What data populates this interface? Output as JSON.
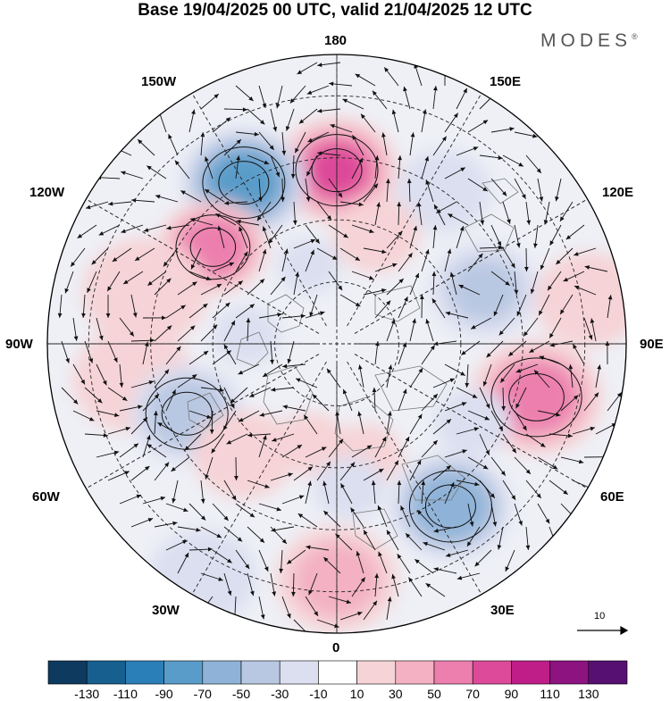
{
  "title": "Base 19/04/2025 00 UTC, valid 21/04/2025 12 UTC",
  "brand": "MODES",
  "brand_mark": "®",
  "longitude_labels": {
    "top": "180",
    "top_right": "150E",
    "top_left": "150W",
    "upper_left": "120W",
    "upper_right": "120E",
    "left": "90W",
    "right": "90E",
    "lower_left": "60W",
    "lower_right": "60E",
    "bottom_left": "30W",
    "bottom_right": "30E",
    "bottom": "0"
  },
  "reference_vector_label": "10",
  "colorbar": {
    "colors": [
      "#0d3a5e",
      "#175f8f",
      "#2b7fb8",
      "#5a9cc9",
      "#8fb3d8",
      "#b9c8e2",
      "#dcdff0",
      "#ffffff",
      "#f6d3d6",
      "#f3b1c3",
      "#ec7fae",
      "#dd4a99",
      "#bf1d87",
      "#8c1380",
      "#561071"
    ],
    "labels": [
      "-130",
      "-110",
      "-90",
      "-70",
      "-50",
      "-30",
      "-10",
      "10",
      "30",
      "50",
      "70",
      "90",
      "110",
      "130"
    ]
  },
  "anomaly_centers": [
    {
      "lon": 180,
      "lat": 48,
      "value": 80,
      "size": 1.0
    },
    {
      "lon": 150,
      "lat": 45,
      "value": -95,
      "size": 1.0
    },
    {
      "lon": 128,
      "lat": 52,
      "value": 75,
      "size": 0.9
    },
    {
      "lon": 105,
      "lat": 42,
      "value": 25,
      "size": 1.3
    },
    {
      "lon": 95,
      "lat": 68,
      "value": -25,
      "size": 0.7
    },
    {
      "lon": 80,
      "lat": 40,
      "value": 30,
      "size": 1.2
    },
    {
      "lon": 65,
      "lat": 50,
      "value": -50,
      "size": 1.0
    },
    {
      "lon": 40,
      "lat": 55,
      "value": 30,
      "size": 1.0
    },
    {
      "lon": 15,
      "lat": 65,
      "value": 20,
      "size": 0.8
    },
    {
      "lon": 0,
      "lat": 33,
      "value": 45,
      "size": 1.1
    },
    {
      "lon": 30,
      "lat": 25,
      "value": -20,
      "size": 1.2
    },
    {
      "lon": -35,
      "lat": 42,
      "value": -75,
      "size": 1.0
    },
    {
      "lon": -75,
      "lat": 40,
      "value": 70,
      "size": 1.1
    },
    {
      "lon": -60,
      "lat": 52,
      "value": -25,
      "size": 0.8
    },
    {
      "lon": -110,
      "lat": 52,
      "value": -40,
      "size": 1.0
    },
    {
      "lon": -145,
      "lat": 45,
      "value": -35,
      "size": 0.9
    },
    {
      "lon": -160,
      "lat": 62,
      "value": 25,
      "size": 0.9
    },
    {
      "lon": -100,
      "lat": 28,
      "value": 20,
      "size": 1.2
    },
    {
      "lon": -15,
      "lat": 62,
      "value": 20,
      "size": 0.8
    },
    {
      "lon": -5,
      "lat": 55,
      "value": -20,
      "size": 0.8
    },
    {
      "lon": 160,
      "lat": 70,
      "value": -20,
      "size": 0.7
    }
  ]
}
